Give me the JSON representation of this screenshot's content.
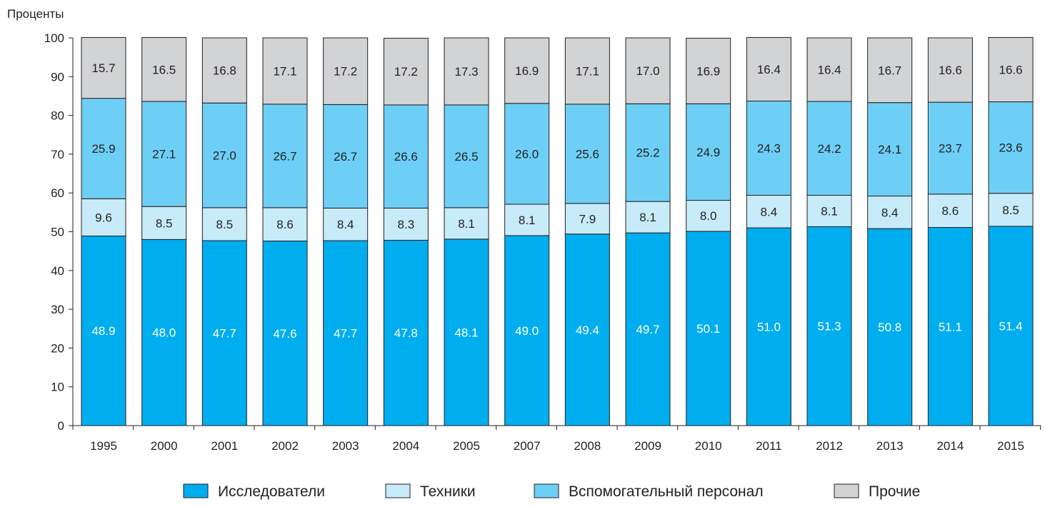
{
  "chart_data": {
    "type": "bar",
    "stacked": true,
    "ylabel": "Проценты",
    "ylim": [
      0,
      100
    ],
    "yticks": [
      0,
      10,
      20,
      30,
      40,
      50,
      60,
      70,
      80,
      90,
      100
    ],
    "grid": false,
    "legend_position": "bottom",
    "categories": [
      "1995",
      "2000",
      "2001",
      "2002",
      "2003",
      "2004",
      "2005",
      "2007",
      "2008",
      "2009",
      "2010",
      "2011",
      "2012",
      "2013",
      "2014",
      "2015"
    ],
    "series": [
      {
        "name": "Исследователи",
        "color": "#00adef",
        "label_color": "#ffffff",
        "values": [
          48.9,
          48.0,
          47.7,
          47.6,
          47.7,
          47.8,
          48.1,
          49.0,
          49.4,
          49.7,
          50.1,
          51.0,
          51.3,
          50.8,
          51.1,
          51.4
        ]
      },
      {
        "name": "Техники",
        "color": "#c8ebfa",
        "label_color": "#231f20",
        "values": [
          9.6,
          8.5,
          8.5,
          8.6,
          8.4,
          8.3,
          8.1,
          8.1,
          7.9,
          8.1,
          8.0,
          8.4,
          8.1,
          8.4,
          8.6,
          8.5
        ]
      },
      {
        "name": "Вспомогательный персонал",
        "color": "#6dcff6",
        "label_color": "#231f20",
        "values": [
          25.9,
          27.1,
          27.0,
          26.7,
          26.7,
          26.6,
          26.5,
          26.0,
          25.6,
          25.2,
          24.9,
          24.3,
          24.2,
          24.1,
          23.7,
          23.6
        ]
      },
      {
        "name": "Прочие",
        "color": "#d1d3d4",
        "label_color": "#231f20",
        "values": [
          15.7,
          16.5,
          16.8,
          17.1,
          17.2,
          17.2,
          17.3,
          16.9,
          17.1,
          17.0,
          16.9,
          16.4,
          16.4,
          16.7,
          16.6,
          16.6
        ]
      }
    ]
  }
}
